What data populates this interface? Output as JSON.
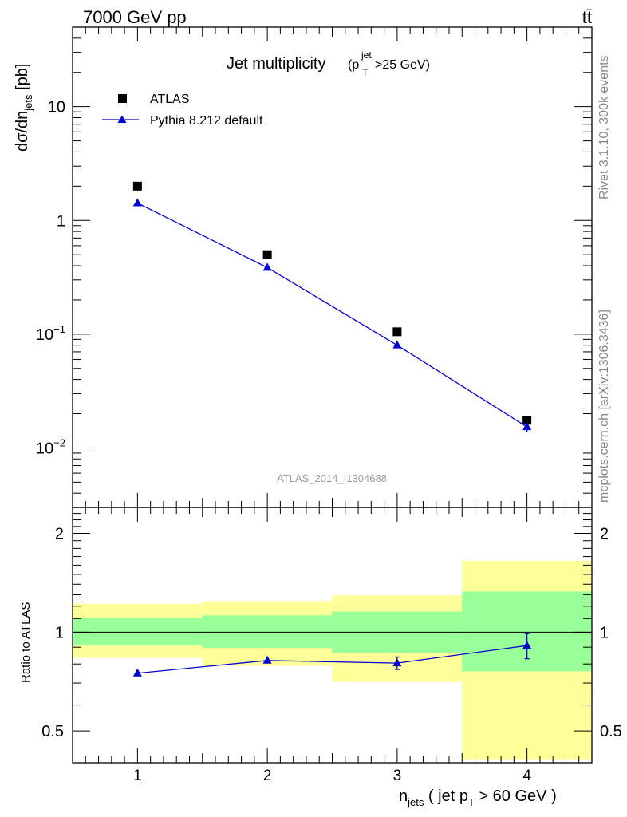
{
  "header": {
    "left": "7000 GeV pp",
    "right": "tt̄"
  },
  "side_texts": {
    "rivet": "Rivet 3.1.10,  300k events",
    "mcplots": "mcplots.cern.ch [arXiv:1306.3436]"
  },
  "plot": {
    "title_main": "Jet multiplicity",
    "title_paren_open": "(p",
    "title_sub": "T",
    "title_sup": "jet",
    "title_tail": ">25 GeV)",
    "analysis_id": "ATLAS_2014_I1304688"
  },
  "axes": {
    "ylabel_pre": "dσ/dn",
    "ylabel_sub": "jets",
    "ylabel_post": " [pb]",
    "ratio_ylabel": "Ratio to ATLAS",
    "xlabel_n": "n",
    "xlabel_sub": "jets",
    "xlabel_mid": " ( jet p",
    "xlabel_sub2": "T",
    "xlabel_tail": " > 60 GeV )",
    "xticks": [
      "1",
      "2",
      "3",
      "4"
    ],
    "main_yticks": [
      {
        "mant": "10",
        "exp": "−2",
        "value": 0.01
      },
      {
        "mant": "10",
        "exp": "−1",
        "value": 0.1
      },
      {
        "mant": "1",
        "exp": "",
        "value": 1
      },
      {
        "mant": "10",
        "exp": "",
        "value": 10
      }
    ],
    "ratio_yticks": [
      {
        "label": "0.5",
        "value": 0.5
      },
      {
        "label": "1",
        "value": 1
      },
      {
        "label": "2",
        "value": 2
      }
    ]
  },
  "legend": {
    "data_label": "ATLAS",
    "mc_label": "Pythia 8.212 default",
    "data_color": "#000000",
    "mc_color": "#0000d0"
  },
  "chart_data": [
    {
      "type": "scatter",
      "panel": "main",
      "yscale": "log",
      "xlim": [
        0.5,
        4.5
      ],
      "ylim": [
        0.003,
        50
      ],
      "x": [
        1,
        2,
        3,
        4
      ],
      "series": [
        {
          "name": "ATLAS",
          "y": [
            2.0,
            0.5,
            0.105,
            0.0175
          ],
          "marker": "square",
          "color": "#000000"
        },
        {
          "name": "Pythia 8.212 default",
          "y": [
            1.42,
            0.385,
            0.08,
            0.0153
          ],
          "yerr": [
            0,
            0,
            0,
            0.0015
          ],
          "marker": "triangle",
          "line": true,
          "color": "#0000d0"
        }
      ]
    },
    {
      "type": "scatter",
      "panel": "ratio",
      "yscale": "log",
      "xlim": [
        0.5,
        4.5
      ],
      "ylim": [
        0.4,
        2.4
      ],
      "bins": [
        {
          "xlo": 0.5,
          "xhi": 1.5,
          "yellow": [
            0.835,
            1.22
          ],
          "green": [
            0.915,
            1.105
          ]
        },
        {
          "xlo": 1.5,
          "xhi": 2.5,
          "yellow": [
            0.79,
            1.245
          ],
          "green": [
            0.895,
            1.125
          ]
        },
        {
          "xlo": 2.5,
          "xhi": 3.5,
          "yellow": [
            0.705,
            1.295
          ],
          "green": [
            0.865,
            1.155
          ]
        },
        {
          "xlo": 3.5,
          "xhi": 4.5,
          "yellow": [
            0.41,
            1.65
          ],
          "green": [
            0.76,
            1.33
          ]
        }
      ],
      "x": [
        1,
        2,
        3,
        4
      ],
      "series": [
        {
          "name": "Pythia 8.212 default",
          "y": [
            0.75,
            0.82,
            0.805,
            0.91
          ],
          "yerr": [
            0,
            0,
            0.035,
            0.08
          ],
          "color": "#0000d0"
        }
      ],
      "colors": {
        "yellow": "#ffff99",
        "green": "#99ff99"
      }
    }
  ]
}
